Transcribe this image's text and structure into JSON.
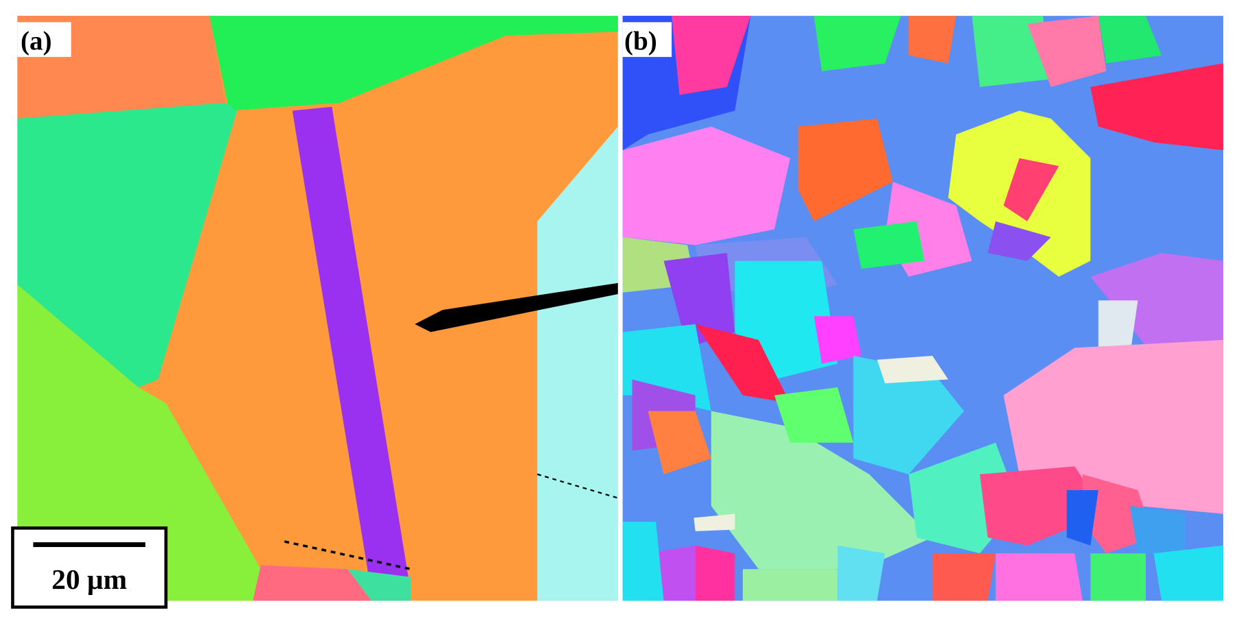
{
  "panels": [
    {
      "label": "(a)"
    },
    {
      "label": "(b)"
    }
  ],
  "scale_bar": {
    "label": "20 μm"
  }
}
